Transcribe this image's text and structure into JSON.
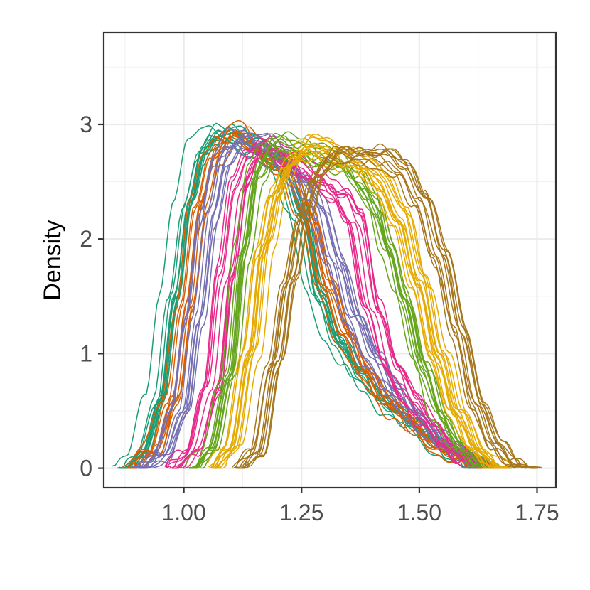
{
  "chart_data": {
    "type": "line",
    "title": "",
    "xlabel": "",
    "ylabel": "Density",
    "xlim": [
      0.83,
      1.79
    ],
    "ylim": [
      -0.17,
      3.8
    ],
    "xticks": [
      1.0,
      1.25,
      1.5,
      1.75
    ],
    "xtick_labels": [
      "1.00",
      "1.25",
      "1.50",
      "1.75"
    ],
    "yticks": [
      0,
      1,
      2,
      3
    ],
    "ytick_labels": [
      "0",
      "1",
      "2",
      "3"
    ],
    "grid": true,
    "legend": "none",
    "note": "Groups of overlapping kernel density curves; each group has many near-identical replicate lines.",
    "groups": [
      {
        "color": "#1b9e77",
        "replicates": 12,
        "x": [
          0.86,
          0.9,
          0.94,
          0.97,
          1.0,
          1.03,
          1.06,
          1.08,
          1.1,
          1.13,
          1.16,
          1.2,
          1.24,
          1.28,
          1.32,
          1.36,
          1.4,
          1.44,
          1.48,
          1.52,
          1.56,
          1.6,
          1.63
        ],
        "y": [
          0.0,
          0.1,
          0.6,
          1.5,
          2.3,
          2.75,
          2.9,
          2.92,
          2.88,
          2.82,
          2.75,
          2.62,
          2.2,
          1.5,
          1.1,
          0.85,
          0.65,
          0.5,
          0.38,
          0.25,
          0.12,
          0.03,
          0.0
        ]
      },
      {
        "color": "#d95f02",
        "replicates": 10,
        "x": [
          0.88,
          0.93,
          0.97,
          1.0,
          1.03,
          1.06,
          1.09,
          1.12,
          1.15,
          1.18,
          1.22,
          1.26,
          1.3,
          1.34,
          1.38,
          1.42,
          1.46,
          1.5,
          1.54,
          1.58,
          1.62,
          1.65
        ],
        "y": [
          0.0,
          0.15,
          0.6,
          1.4,
          2.3,
          2.75,
          2.92,
          2.9,
          2.8,
          2.72,
          2.6,
          2.2,
          1.6,
          1.15,
          0.85,
          0.62,
          0.45,
          0.3,
          0.18,
          0.08,
          0.02,
          0.0
        ]
      },
      {
        "color": "#7570b3",
        "replicates": 10,
        "x": [
          0.9,
          0.95,
          0.99,
          1.02,
          1.05,
          1.08,
          1.11,
          1.14,
          1.17,
          1.2,
          1.24,
          1.28,
          1.32,
          1.36,
          1.4,
          1.44,
          1.48,
          1.52,
          1.56,
          1.6,
          1.64,
          1.67
        ],
        "y": [
          0.0,
          0.1,
          0.5,
          1.3,
          2.2,
          2.7,
          2.85,
          2.85,
          2.8,
          2.72,
          2.55,
          2.3,
          1.8,
          1.3,
          0.95,
          0.7,
          0.5,
          0.33,
          0.2,
          0.1,
          0.02,
          0.0
        ]
      },
      {
        "color": "#e7298a",
        "replicates": 10,
        "x": [
          0.97,
          1.02,
          1.06,
          1.09,
          1.12,
          1.15,
          1.18,
          1.21,
          1.24,
          1.27,
          1.3,
          1.33,
          1.36,
          1.4,
          1.44,
          1.48,
          1.52,
          1.56,
          1.6,
          1.64,
          1.67
        ],
        "y": [
          0.0,
          0.15,
          0.7,
          1.7,
          2.5,
          2.75,
          2.8,
          2.75,
          2.65,
          2.55,
          2.45,
          2.4,
          2.2,
          1.4,
          0.9,
          0.6,
          0.38,
          0.2,
          0.08,
          0.02,
          0.0
        ]
      },
      {
        "color": "#66a61e",
        "replicates": 10,
        "x": [
          1.01,
          1.05,
          1.09,
          1.12,
          1.15,
          1.18,
          1.21,
          1.24,
          1.28,
          1.32,
          1.36,
          1.4,
          1.43,
          1.46,
          1.5,
          1.54,
          1.58,
          1.62,
          1.66,
          1.69
        ],
        "y": [
          0.0,
          0.15,
          0.8,
          1.9,
          2.6,
          2.8,
          2.82,
          2.78,
          2.72,
          2.68,
          2.55,
          2.3,
          1.9,
          1.5,
          0.9,
          0.45,
          0.18,
          0.05,
          0.01,
          0.0
        ]
      },
      {
        "color": "#e6ab02",
        "replicates": 12,
        "x": [
          1.06,
          1.1,
          1.14,
          1.17,
          1.2,
          1.23,
          1.26,
          1.29,
          1.32,
          1.35,
          1.38,
          1.42,
          1.46,
          1.5,
          1.54,
          1.58,
          1.62,
          1.66,
          1.69
        ],
        "y": [
          0.0,
          0.2,
          1.0,
          1.9,
          2.45,
          2.7,
          2.78,
          2.8,
          2.75,
          2.7,
          2.62,
          2.5,
          2.2,
          1.6,
          1.0,
          0.5,
          0.15,
          0.03,
          0.0
        ]
      },
      {
        "color": "#a6761d",
        "replicates": 10,
        "x": [
          1.11,
          1.15,
          1.19,
          1.22,
          1.25,
          1.28,
          1.31,
          1.34,
          1.37,
          1.4,
          1.43,
          1.46,
          1.5,
          1.54,
          1.58,
          1.62,
          1.66,
          1.7,
          1.73,
          1.75
        ],
        "y": [
          0.0,
          0.15,
          0.9,
          1.6,
          2.2,
          2.55,
          2.7,
          2.72,
          2.72,
          2.72,
          2.68,
          2.6,
          2.35,
          1.85,
          1.2,
          0.55,
          0.18,
          0.04,
          0.01,
          0.0
        ]
      }
    ]
  }
}
